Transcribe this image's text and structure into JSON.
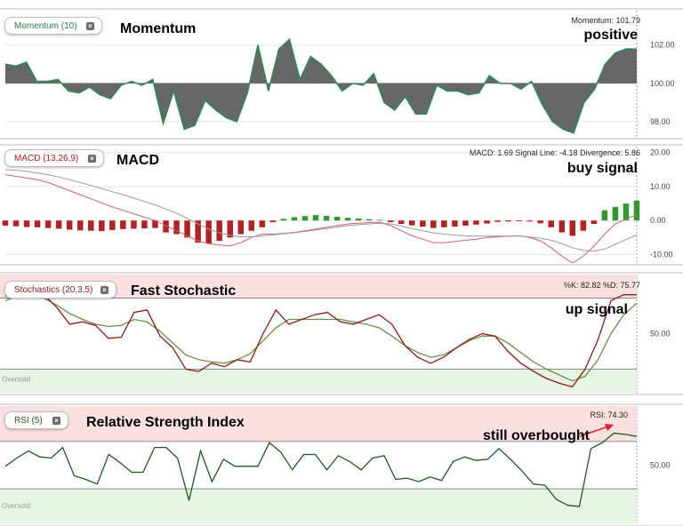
{
  "colors": {
    "momentum_fill": "#666666",
    "momentum_line": "#2e8b57",
    "macd_pos": "#2e9a2e",
    "macd_neg": "#b22222",
    "macd_line": "#d06070",
    "signal_line": "#9a9a9a",
    "stoch_k": "#8b1a1a",
    "stoch_d": "#6b8e4e",
    "rsi_line": "#1e5a1e",
    "overbought_zone": "#fbe0e0",
    "oversold_zone": "#e6f6e3",
    "arrow": "#e02020"
  },
  "panels": {
    "momentum": {
      "label": "Momentum (10)",
      "title": "Momentum",
      "readout": "Momentum: 101.79",
      "note": "positive"
    },
    "macd": {
      "label": "MACD (13,26,9)",
      "title": "MACD",
      "readout": "MACD: 1.69 Signal Line: -4.18 Divergence: 5.86",
      "note": "buy signal"
    },
    "stoch": {
      "label": "Stochastics (20,3,5)",
      "title": "Fast Stochastic",
      "readout": "%K: 82.82 %D: 75.77",
      "note": "up signal",
      "zone_label": "Oversold"
    },
    "rsi": {
      "label": "RSI (5)",
      "title": "Relative Strength Index",
      "readout": "RSI: 74.30",
      "note": "still overbought",
      "zone_label": "Oversold"
    }
  },
  "chart_data": [
    {
      "type": "area",
      "name": "Momentum (10)",
      "baseline": 100,
      "ylim": [
        97.2,
        103.8
      ],
      "yticks": [
        "98.00",
        "100.00",
        "102.00"
      ],
      "ytick_values": [
        98,
        100,
        102
      ],
      "values": [
        101.0,
        100.9,
        101.1,
        100.1,
        100.1,
        100.2,
        99.6,
        99.5,
        99.8,
        99.4,
        99.2,
        99.9,
        100.1,
        99.9,
        100.2,
        97.9,
        99.6,
        97.6,
        97.8,
        99.1,
        98.6,
        98.2,
        98.0,
        99.5,
        102.0,
        99.6,
        101.8,
        102.3,
        100.2,
        101.4,
        101.0,
        100.4,
        99.6,
        100.0,
        99.9,
        100.5,
        99.0,
        98.6,
        99.3,
        98.4,
        98.4,
        99.9,
        99.6,
        99.6,
        99.4,
        99.5,
        100.4,
        100.0,
        100.0,
        99.7,
        100.1,
        98.9,
        98.0,
        97.6,
        97.4,
        99.0,
        99.7,
        101.0,
        101.6,
        101.8,
        101.79
      ]
    },
    {
      "type": "bar",
      "name": "MACD (13,26,9)",
      "ylim": [
        -12.5,
        21.5
      ],
      "yticks": [
        "-10.00",
        "0.00",
        "10.00",
        "20.00"
      ],
      "ytick_values": [
        -10,
        0,
        10,
        20
      ],
      "series": [
        {
          "name": "Divergence",
          "values": [
            -1.5,
            -1.7,
            -1.9,
            -2.0,
            -2.2,
            -2.4,
            -2.7,
            -2.9,
            -3.0,
            -3.1,
            -2.8,
            -2.5,
            -2.4,
            -2.3,
            -2.2,
            -3.5,
            -4.0,
            -5.0,
            -6.5,
            -6.8,
            -6.0,
            -5.0,
            -4.0,
            -3.0,
            -2.0,
            -0.5,
            0.5,
            1.0,
            1.3,
            1.6,
            1.4,
            1.1,
            0.8,
            0.6,
            0.4,
            0.2,
            -0.5,
            -1.0,
            -1.4,
            -1.8,
            -2.2,
            -2.0,
            -1.8,
            -1.5,
            -1.2,
            -0.9,
            -0.4,
            -0.3,
            -0.2,
            -0.3,
            -0.8,
            -2.0,
            -3.5,
            -4.5,
            -3.0,
            -1.0,
            3.0,
            4.0,
            5.0,
            5.86
          ]
        },
        {
          "name": "MACD",
          "values": [
            13.5,
            13.0,
            12.5,
            12.0,
            11.2,
            10.0,
            8.8,
            7.6,
            6.4,
            5.2,
            4.0,
            3.0,
            2.0,
            1.0,
            0.0,
            -1.5,
            -3.0,
            -4.5,
            -6.0,
            -6.8,
            -7.2,
            -7.5,
            -6.5,
            -5.0,
            -4.0,
            -4.0,
            -3.8,
            -3.5,
            -3.0,
            -2.5,
            -2.0,
            -1.5,
            -1.0,
            -0.8,
            -0.6,
            -0.5,
            -1.5,
            -3.0,
            -4.5,
            -5.5,
            -6.5,
            -6.5,
            -6.2,
            -5.8,
            -5.5,
            -5.0,
            -4.8,
            -4.6,
            -4.5,
            -5.0,
            -6.0,
            -8.0,
            -10.5,
            -12.5,
            -10.5,
            -7.5,
            -4.0,
            -1.0,
            0.5,
            1.69
          ]
        },
        {
          "name": "Signal Line",
          "values": [
            15.0,
            14.8,
            14.5,
            14.0,
            13.5,
            12.8,
            12.0,
            11.2,
            10.3,
            9.4,
            8.5,
            7.6,
            6.6,
            5.6,
            4.6,
            3.4,
            2.2,
            0.6,
            -1.0,
            -2.5,
            -3.6,
            -4.4,
            -4.8,
            -4.8,
            -4.6,
            -4.2,
            -3.9,
            -3.6,
            -3.2,
            -2.8,
            -2.4,
            -1.9,
            -1.5,
            -1.2,
            -1.0,
            -0.8,
            -1.0,
            -1.6,
            -2.4,
            -3.0,
            -3.6,
            -4.0,
            -4.3,
            -4.5,
            -4.6,
            -4.6,
            -4.6,
            -4.6,
            -4.6,
            -4.8,
            -5.2,
            -5.8,
            -6.8,
            -8.0,
            -8.8,
            -9.0,
            -8.4,
            -7.0,
            -5.6,
            -4.18
          ]
        }
      ]
    },
    {
      "type": "line",
      "name": "Stochastics (20,3,5)",
      "ylim": [
        0,
        100
      ],
      "ytick_labels": [
        "50.00"
      ],
      "ytick_values": [
        50
      ],
      "overbought": 80,
      "oversold": 20,
      "series": [
        {
          "name": "%K",
          "values": [
            82,
            80,
            84,
            83,
            72,
            58,
            60,
            57,
            46,
            47,
            68,
            70,
            48,
            38,
            20,
            18,
            25,
            22,
            28,
            26,
            50,
            70,
            58,
            62,
            66,
            68,
            60,
            58,
            62,
            66,
            58,
            40,
            30,
            25,
            30,
            38,
            45,
            50,
            48,
            35,
            25,
            18,
            12,
            8,
            5,
            20,
            45,
            78,
            83,
            82.82
          ]
        },
        {
          "name": "%D",
          "values": [
            78,
            82,
            82,
            80,
            74,
            67,
            62,
            58,
            56,
            57,
            62,
            60,
            52,
            42,
            32,
            28,
            26,
            25,
            28,
            33,
            44,
            55,
            62,
            62,
            62,
            62,
            62,
            60,
            58,
            55,
            48,
            40,
            34,
            30,
            32,
            38,
            44,
            48,
            48,
            42,
            34,
            26,
            20,
            15,
            10,
            14,
            28,
            50,
            66,
            75.77
          ]
        }
      ]
    },
    {
      "type": "line",
      "name": "RSI (5)",
      "ylim": [
        0,
        100
      ],
      "ytick_labels": [
        "50.00"
      ],
      "ytick_values": [
        50
      ],
      "overbought": 70,
      "oversold": 30,
      "series": [
        {
          "name": "RSI",
          "values": [
            49,
            56,
            62,
            57,
            56,
            65,
            41,
            38,
            34,
            59,
            52,
            44,
            44,
            65,
            65,
            56,
            20,
            62,
            36,
            55,
            49,
            49,
            49,
            69,
            61,
            46,
            59,
            59,
            46,
            58,
            53,
            46,
            56,
            58,
            38,
            39,
            36,
            40,
            37,
            53,
            57,
            54,
            55,
            64,
            55,
            45,
            34,
            33,
            21,
            16,
            15,
            64,
            69,
            77,
            76,
            74.3
          ]
        }
      ]
    }
  ]
}
